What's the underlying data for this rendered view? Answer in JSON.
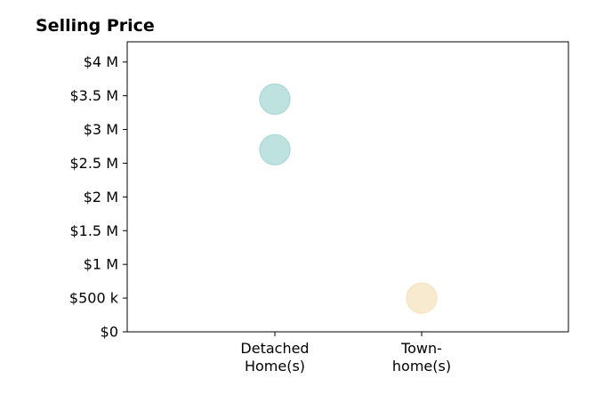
{
  "chart_data": {
    "type": "scatter",
    "title": "Selling Price",
    "xlabel": "",
    "ylabel": "",
    "categories": [
      [
        "Detached",
        "Home(s)"
      ],
      [
        "Town-",
        "home(s)"
      ]
    ],
    "y_ticks": [
      "$0",
      "$500 k",
      "$1 M",
      "$1.5 M",
      "$2 M",
      "$2.5 M",
      "$3 M",
      "$3.5 M",
      "$4 M"
    ],
    "y_tick_values": [
      0,
      500000,
      1000000,
      1500000,
      2000000,
      2500000,
      3000000,
      3500000,
      4000000
    ],
    "ylim": [
      0,
      4300000
    ],
    "grid": false,
    "points": [
      {
        "category_index": 0,
        "value": 3450000,
        "color": "#a8d8d4"
      },
      {
        "category_index": 0,
        "value": 2700000,
        "color": "#a8d8d4"
      },
      {
        "category_index": 1,
        "value": 500000,
        "color": "#f6e3bf"
      }
    ]
  }
}
